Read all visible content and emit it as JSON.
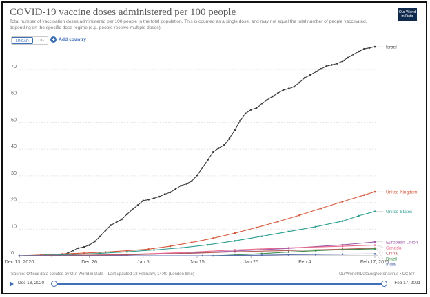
{
  "header": {
    "title": "COVID-19 vaccine doses administered per 100 people",
    "subtitle": "Total number of vaccination doses administered per 100 people in the total population. This is counted as a single dose, and may not equal the total number of people vaccinated, depending on the specific dose regime (e.g. people receive multiple doses).",
    "logo_line1": "Our World",
    "logo_line2": "in Data"
  },
  "controls": {
    "scale_linear": "LINEAR",
    "scale_log": "LOG",
    "add_country": "Add country"
  },
  "footer": {
    "source": "Source: Official data collated by Our World in Data – Last updated 18 February, 14:40 (London time)",
    "license": "OurWorldInData.org/coronavirus • CC BY"
  },
  "timeline": {
    "start": "Dec 13, 2020",
    "end": "Feb 17, 2021"
  },
  "colors": {
    "accent": "#3e6fb7",
    "israel": "#3a3a3a",
    "uk": "#d4583a",
    "us": "#2a9d8f",
    "eu": "#9c5aa8",
    "canada": "#e7688a",
    "china": "#b55a5a",
    "brazil": "#3f8f4e",
    "india": "#5a6fb3"
  },
  "chart_data": {
    "type": "line",
    "title": "COVID-19 vaccine doses administered per 100 people",
    "x_tick_labels": [
      "Dec 13, 2020",
      "Dec 26",
      "Jan 5",
      "Jan 15",
      "Jan 25",
      "Feb 4",
      "Feb 17, 2021"
    ],
    "x_tick_days": [
      0,
      13,
      23,
      33,
      43,
      53,
      66
    ],
    "y_ticks": [
      0,
      10,
      20,
      30,
      40,
      50,
      60,
      70
    ],
    "ylim": [
      0,
      78
    ],
    "xlim_days": [
      0,
      66
    ],
    "grid": true,
    "legend": "right, at line ends",
    "series": [
      {
        "name": "Israel",
        "color_key": "israel",
        "x": [
          0,
          6,
          8,
          9,
          10,
          11,
          12,
          13,
          14,
          15,
          16,
          17,
          18,
          19,
          20,
          21,
          22,
          23,
          24,
          25,
          26,
          27,
          28,
          29,
          30,
          31,
          32,
          33,
          34,
          35,
          36,
          37,
          38,
          39,
          40,
          41,
          42,
          43,
          44,
          45,
          46,
          47,
          48,
          49,
          50,
          51,
          52,
          53,
          54,
          55,
          56,
          57,
          58,
          59,
          60,
          61,
          62,
          63,
          64,
          65,
          66
        ],
        "y": [
          0,
          0,
          0.5,
          1.0,
          2.0,
          2.9,
          3.3,
          4.0,
          5.4,
          7.3,
          9.5,
          11.5,
          12.5,
          13.7,
          15.6,
          17.4,
          19.0,
          20.7,
          21.1,
          21.6,
          22.2,
          23.1,
          23.8,
          25.0,
          26.3,
          27.0,
          28.0,
          30.2,
          33.0,
          36.0,
          39.0,
          40.4,
          41.5,
          44.0,
          47.2,
          50.7,
          53.5,
          54.9,
          55.5,
          57.0,
          58.6,
          59.9,
          61.1,
          62.3,
          62.8,
          63.5,
          65.1,
          66.9,
          67.9,
          69.1,
          70.2,
          71.2,
          71.7,
          72.2,
          73.1,
          74.4,
          75.6,
          76.7,
          77.7,
          78.1,
          78.5
        ]
      },
      {
        "name": "United Kingdom",
        "color_key": "uk",
        "x": [
          0,
          4,
          8,
          12,
          16,
          20,
          24,
          28,
          32,
          36,
          40,
          44,
          48,
          52,
          56,
          60,
          64,
          66
        ],
        "y": [
          0,
          0.3,
          0.7,
          1.0,
          1.4,
          1.9,
          2.5,
          3.6,
          5.0,
          6.6,
          8.5,
          10.6,
          12.8,
          15.2,
          17.8,
          20.3,
          22.8,
          24.0
        ]
      },
      {
        "name": "United States",
        "color_key": "us",
        "x": [
          0,
          5,
          10,
          15,
          20,
          25,
          30,
          35,
          40,
          45,
          50,
          55,
          60,
          63,
          66
        ],
        "y": [
          0,
          0.2,
          0.5,
          0.9,
          1.5,
          2.2,
          3.0,
          4.1,
          5.6,
          7.3,
          9.1,
          10.9,
          13.0,
          15.0,
          16.6
        ]
      },
      {
        "name": "European Union",
        "color_key": "eu",
        "x": [
          0,
          10,
          20,
          30,
          40,
          50,
          60,
          66
        ],
        "y": [
          0,
          0.05,
          0.3,
          0.9,
          1.8,
          2.8,
          4.1,
          5.2
        ]
      },
      {
        "name": "Canada",
        "color_key": "canada",
        "x": [
          0,
          10,
          20,
          30,
          40,
          50,
          60,
          66
        ],
        "y": [
          0,
          0.1,
          0.5,
          1.2,
          2.2,
          3.0,
          3.6,
          4.0
        ]
      },
      {
        "name": "China",
        "color_key": "china",
        "x": [
          0,
          10,
          20,
          30,
          40,
          50,
          60,
          66
        ],
        "y": [
          0,
          0.2,
          0.4,
          0.8,
          1.5,
          2.0,
          2.5,
          2.9
        ]
      },
      {
        "name": "Brazil",
        "color_key": "brazil",
        "x": [
          0,
          36,
          40,
          45,
          50,
          55,
          60,
          66
        ],
        "y": [
          0,
          0,
          0.3,
          0.8,
          1.4,
          1.9,
          2.3,
          2.6
        ]
      },
      {
        "name": "India",
        "color_key": "india",
        "x": [
          0,
          34,
          40,
          45,
          50,
          55,
          60,
          66
        ],
        "y": [
          0,
          0,
          0.1,
          0.2,
          0.4,
          0.5,
          0.6,
          0.7
        ]
      }
    ]
  }
}
